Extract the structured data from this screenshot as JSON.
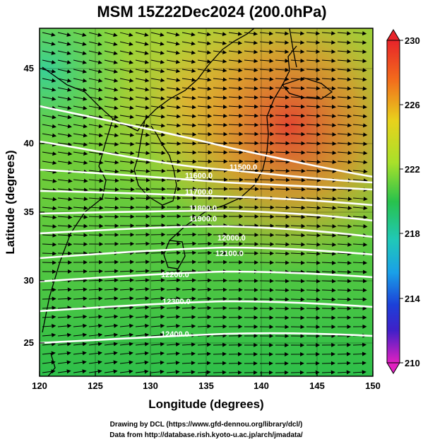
{
  "title": "MSM 15Z22Dec2024 (200.0hPa)",
  "xlabel": "Longitude (degrees)",
  "ylabel": "Latitude  (degrees)",
  "x_ticks": [
    "120",
    "125",
    "130",
    "135",
    "140",
    "145",
    "150"
  ],
  "y_ticks": [
    "25",
    "30",
    "35",
    "40",
    "45"
  ],
  "colorbar": {
    "labels": [
      "230",
      "226",
      "222",
      "218",
      "214",
      "210"
    ],
    "range": [
      210,
      230
    ]
  },
  "contour_labels": [
    "11500.0",
    "11600.0",
    "11700.0",
    "11800.0",
    "11900.0",
    "12000.0",
    "12100.0",
    "12200.0",
    "12300.0",
    "12400.0"
  ],
  "credits": {
    "line1": "Drawing by DCL (https://www.gfd-dennou.org/library/dcl/)",
    "line2": "Data from http://database.rish.kyoto-u.ac.jp/arch/jmadata/"
  },
  "chart_data": {
    "type": "heatmap",
    "title": "MSM 15Z22Dec2024 (200.0hPa)",
    "xlabel": "Longitude (degrees)",
    "ylabel": "Latitude  (degrees)",
    "xlim": [
      120,
      150
    ],
    "ylim": [
      22.5,
      47.5
    ],
    "color_range": [
      210,
      230
    ],
    "contour_levels": [
      11500,
      11600,
      11700,
      11800,
      11900,
      12000,
      12100,
      12200,
      12300,
      12400
    ],
    "wind": "westerly vectors",
    "colors": {
      "warm_max": "#e8242a",
      "mid": "#b8e030",
      "cool": "#2cc050",
      "min": "#e020a0"
    }
  }
}
